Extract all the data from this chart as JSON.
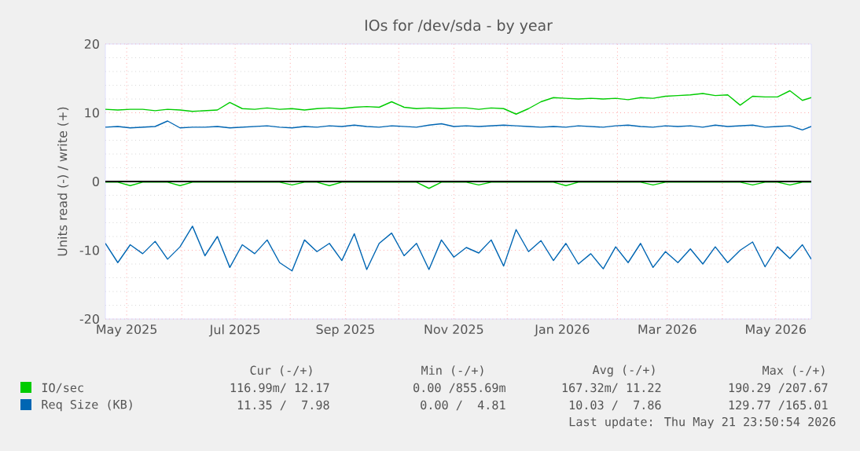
{
  "chart_data": {
    "type": "line",
    "title": "IOs for /dev/sda - by year",
    "ylabel": "Units read (-) / write (+)",
    "x": [
      "2025-04-19",
      "2025-04-26",
      "2025-05-03",
      "2025-05-10",
      "2025-05-17",
      "2025-05-24",
      "2025-05-31",
      "2025-06-07",
      "2025-06-14",
      "2025-06-21",
      "2025-06-28",
      "2025-07-05",
      "2025-07-12",
      "2025-07-19",
      "2025-07-26",
      "2025-08-02",
      "2025-08-09",
      "2025-08-16",
      "2025-08-23",
      "2025-08-30",
      "2025-09-06",
      "2025-09-13",
      "2025-09-20",
      "2025-09-27",
      "2025-10-04",
      "2025-10-11",
      "2025-10-18",
      "2025-10-25",
      "2025-11-01",
      "2025-11-08",
      "2025-11-15",
      "2025-11-22",
      "2025-11-29",
      "2025-12-06",
      "2025-12-13",
      "2025-12-20",
      "2025-12-27",
      "2026-01-03",
      "2026-01-10",
      "2026-01-17",
      "2026-01-24",
      "2026-01-31",
      "2026-02-07",
      "2026-02-14",
      "2026-02-21",
      "2026-02-28",
      "2026-03-07",
      "2026-03-14",
      "2026-03-21",
      "2026-03-28",
      "2026-04-04",
      "2026-04-11",
      "2026-04-18",
      "2026-04-25",
      "2026-05-02",
      "2026-05-09",
      "2026-05-16",
      "2026-05-21"
    ],
    "series": [
      {
        "name": "IO/sec",
        "color": "#00cc00",
        "values": [
          10.5,
          10.4,
          10.5,
          10.5,
          10.3,
          10.5,
          10.4,
          10.2,
          10.3,
          10.4,
          11.5,
          10.6,
          10.5,
          10.7,
          10.5,
          10.6,
          10.4,
          10.6,
          10.7,
          10.6,
          10.8,
          10.9,
          10.8,
          11.6,
          10.8,
          10.6,
          10.7,
          10.6,
          10.7,
          10.7,
          10.5,
          10.7,
          10.6,
          9.8,
          10.6,
          11.6,
          12.2,
          12.1,
          12.0,
          12.1,
          12.0,
          12.1,
          11.9,
          12.2,
          12.1,
          12.4,
          12.5,
          12.6,
          12.8,
          12.5,
          12.6,
          11.1,
          12.4,
          12.3,
          12.3,
          13.2,
          11.8,
          12.2
        ]
      },
      {
        "color": "#00cc00",
        "values": [
          -0.1,
          -0.1,
          -0.6,
          -0.1,
          -0.1,
          -0.1,
          -0.6,
          -0.1,
          -0.1,
          -0.1,
          -0.1,
          -0.1,
          -0.1,
          -0.1,
          -0.1,
          -0.5,
          -0.1,
          -0.1,
          -0.6,
          -0.1,
          -0.1,
          -0.1,
          -0.1,
          -0.1,
          -0.1,
          -0.1,
          -1.0,
          -0.1,
          -0.1,
          -0.1,
          -0.5,
          -0.1,
          -0.1,
          -0.1,
          -0.1,
          -0.1,
          -0.1,
          -0.6,
          -0.1,
          -0.1,
          -0.1,
          -0.1,
          -0.1,
          -0.1,
          -0.5,
          -0.1,
          -0.1,
          -0.1,
          -0.1,
          -0.1,
          -0.1,
          -0.1,
          -0.5,
          -0.1,
          -0.1,
          -0.5,
          -0.1,
          -0.1
        ]
      },
      {
        "name": "Req Size (KB)",
        "color": "#0066b3",
        "values": [
          7.9,
          8.0,
          7.8,
          7.9,
          8.0,
          8.8,
          7.8,
          7.9,
          7.9,
          8.0,
          7.8,
          7.9,
          8.0,
          8.1,
          7.9,
          7.8,
          8.0,
          7.9,
          8.1,
          8.0,
          8.2,
          8.0,
          7.9,
          8.1,
          8.0,
          7.9,
          8.2,
          8.4,
          8.0,
          8.1,
          8.0,
          8.1,
          8.2,
          8.1,
          8.0,
          7.9,
          8.0,
          7.9,
          8.1,
          8.0,
          7.9,
          8.1,
          8.2,
          8.0,
          7.9,
          8.1,
          8.0,
          8.1,
          7.9,
          8.2,
          8.0,
          8.1,
          8.2,
          7.9,
          8.0,
          8.1,
          7.5,
          8.0
        ]
      },
      {
        "color": "#0066b3",
        "values": [
          -9.0,
          -11.8,
          -9.2,
          -10.5,
          -8.7,
          -11.3,
          -9.5,
          -6.5,
          -10.8,
          -8.0,
          -12.5,
          -9.2,
          -10.5,
          -8.5,
          -11.8,
          -13.0,
          -8.5,
          -10.2,
          -9.0,
          -11.5,
          -7.6,
          -12.8,
          -9.0,
          -7.5,
          -10.8,
          -9.0,
          -12.8,
          -8.5,
          -11.0,
          -9.6,
          -10.4,
          -8.5,
          -12.3,
          -7.0,
          -10.2,
          -8.6,
          -11.5,
          -9.0,
          -12.0,
          -10.5,
          -12.7,
          -9.5,
          -11.8,
          -9.0,
          -12.5,
          -10.2,
          -11.8,
          -9.8,
          -12.0,
          -9.5,
          -11.8,
          -10.0,
          -8.8,
          -12.4,
          -9.5,
          -11.2,
          -9.2,
          -11.3
        ]
      }
    ],
    "xlim": [
      "2025-04-19",
      "2026-05-21"
    ],
    "xticks": [
      {
        "value": "2025-05-01",
        "label": "May 2025"
      },
      {
        "value": "2025-06-01",
        "label": null
      },
      {
        "value": "2025-07-01",
        "label": "Jul 2025"
      },
      {
        "value": "2025-08-01",
        "label": null
      },
      {
        "value": "2025-09-01",
        "label": "Sep 2025"
      },
      {
        "value": "2025-10-01",
        "label": null
      },
      {
        "value": "2025-11-01",
        "label": "Nov 2025"
      },
      {
        "value": "2025-12-01",
        "label": null
      },
      {
        "value": "2026-01-01",
        "label": "Jan 2026"
      },
      {
        "value": "2026-02-01",
        "label": null
      },
      {
        "value": "2026-03-01",
        "label": "Mar 2026"
      },
      {
        "value": "2026-04-01",
        "label": null
      },
      {
        "value": "2026-05-01",
        "label": "May 2026"
      }
    ],
    "ylim": [
      -20,
      20
    ],
    "yticks": [
      -20,
      -10,
      0,
      10,
      20
    ],
    "grid": true,
    "legend": "bottom",
    "line_style": "solid",
    "marker": "none",
    "ref_lines": [
      {
        "axis": "y",
        "value": 0,
        "color": "#000000"
      }
    ],
    "annotations": [
      "Cur (-/+)",
      "Min (-/+)",
      "Avg (-/+)",
      "Max (-/+)",
      "116.99m/ 12.17",
      "0.00 /855.69m",
      "167.32m/ 11.22",
      "190.29 /207.67",
      "11.35 /  7.98",
      "0.00 /  4.81",
      "10.03 /  7.86",
      "129.77 /165.01",
      "Last update: Thu May 21 23:50:54 2026"
    ]
  }
}
